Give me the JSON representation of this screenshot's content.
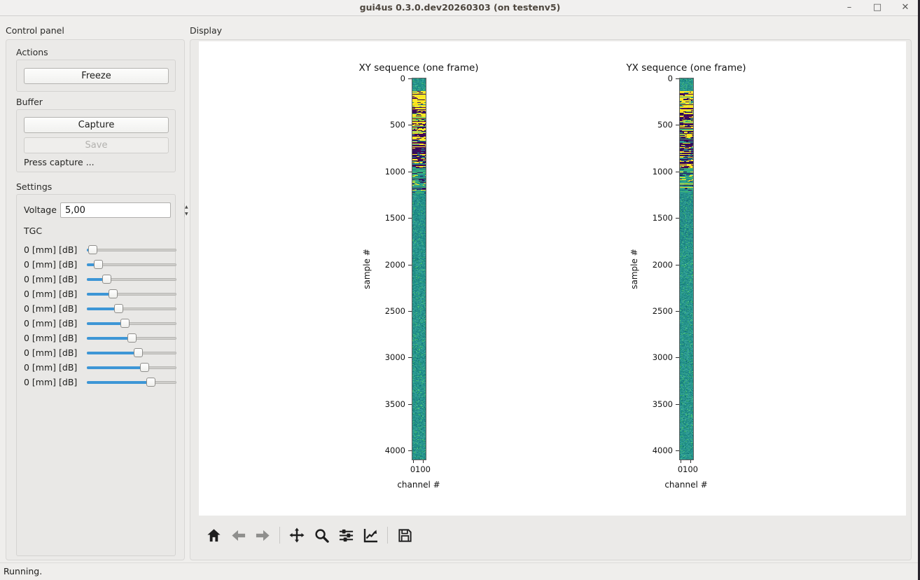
{
  "window": {
    "title": "gui4us 0.3.0.dev20260303 (on testenv5)",
    "controls": {
      "minimize": "–",
      "maximize": "□",
      "close": "✕"
    }
  },
  "status": "Running.",
  "control_panel": {
    "label": "Control panel",
    "actions": {
      "label": "Actions",
      "freeze_label": "Freeze"
    },
    "buffer": {
      "label": "Buffer",
      "capture_label": "Capture",
      "save_label": "Save",
      "hint": "Press capture ..."
    },
    "settings": {
      "label": "Settings",
      "voltage_label": "Voltage",
      "voltage_value": "5,00",
      "tgc": {
        "label": "TGC",
        "rows": [
          {
            "label": "0 [mm] [dB]",
            "fraction": 0.02
          },
          {
            "label": "0 [mm] [dB]",
            "fraction": 0.09
          },
          {
            "label": "0 [mm] [dB]",
            "fraction": 0.19
          },
          {
            "label": "0 [mm] [dB]",
            "fraction": 0.27
          },
          {
            "label": "0 [mm] [dB]",
            "fraction": 0.34
          },
          {
            "label": "0 [mm] [dB]",
            "fraction": 0.42
          },
          {
            "label": "0 [mm] [dB]",
            "fraction": 0.5
          },
          {
            "label": "0 [mm] [dB]",
            "fraction": 0.58
          },
          {
            "label": "0 [mm] [dB]",
            "fraction": 0.66
          },
          {
            "label": "0 [mm] [dB]",
            "fraction": 0.74
          }
        ]
      }
    }
  },
  "display": {
    "label": "Display",
    "toolbar_icons": [
      "home-icon",
      "back-icon",
      "forward-icon",
      "pan-icon",
      "zoom-icon",
      "subplots-icon",
      "customize-icon",
      "save-icon"
    ]
  },
  "chart_data": [
    {
      "type": "heatmap",
      "title": "XY sequence (one frame)",
      "xlabel": "channel #",
      "ylabel": "sample #",
      "xticks": [
        "0",
        "100"
      ],
      "yticks": [
        "0",
        "500",
        "1000",
        "1500",
        "2000",
        "2500",
        "3000",
        "3500",
        "4000"
      ],
      "ylim": [
        4100,
        0
      ],
      "colormap": "viridis",
      "legend": "none",
      "texture": {
        "seed": 1337,
        "colors": {
          "teal": "#27948c",
          "green": "#40b875",
          "yellow": "#fde725",
          "purple": "#45065a",
          "dark": "#2a115e",
          "deep": "#1d7f83"
        },
        "zones": [
          {
            "until": 0.032,
            "mode": "speckle",
            "palette": [
              [
                "teal",
                0.86
              ],
              [
                "green",
                0.1
              ],
              [
                "deep",
                0.04
              ]
            ]
          },
          {
            "until": 0.072,
            "mode": "bands",
            "palette": [
              [
                "yellow",
                0.7
              ],
              [
                "dark",
                0.12
              ],
              [
                "purple",
                0.1
              ],
              [
                "teal",
                0.08
              ]
            ]
          },
          {
            "until": 0.16,
            "mode": "bands",
            "palette": [
              [
                "yellow",
                0.38
              ],
              [
                "purple",
                0.32
              ],
              [
                "dark",
                0.2
              ],
              [
                "green",
                0.1
              ]
            ]
          },
          {
            "until": 0.235,
            "mode": "bands",
            "palette": [
              [
                "purple",
                0.38
              ],
              [
                "yellow",
                0.22
              ],
              [
                "dark",
                0.2
              ],
              [
                "teal",
                0.2
              ]
            ]
          },
          {
            "until": 0.3,
            "mode": "bands",
            "palette": [
              [
                "teal",
                0.4
              ],
              [
                "green",
                0.3
              ],
              [
                "dark",
                0.18
              ],
              [
                "yellow",
                0.12
              ]
            ]
          },
          {
            "until": 0.43,
            "mode": "diagonal",
            "palette": [
              [
                "teal",
                0.74
              ],
              [
                "deep",
                0.18
              ],
              [
                "green",
                0.08
              ]
            ]
          },
          {
            "until": 1.0,
            "mode": "speckle",
            "palette": [
              [
                "teal",
                0.86
              ],
              [
                "green",
                0.09
              ],
              [
                "deep",
                0.05
              ]
            ]
          }
        ]
      }
    },
    {
      "type": "heatmap",
      "title": "YX sequence (one frame)",
      "xlabel": "channel #",
      "ylabel": "sample #",
      "xticks": [
        "0",
        "100"
      ],
      "yticks": [
        "0",
        "500",
        "1000",
        "1500",
        "2000",
        "2500",
        "3000",
        "3500",
        "4000"
      ],
      "ylim": [
        4100,
        0
      ],
      "colormap": "viridis",
      "legend": "none",
      "texture": {
        "seed": 4242,
        "colors": {
          "teal": "#27948c",
          "green": "#40b875",
          "yellow": "#fde725",
          "purple": "#45065a",
          "dark": "#2a115e",
          "deep": "#1d7f83"
        },
        "zones": [
          {
            "until": 0.032,
            "mode": "speckle",
            "palette": [
              [
                "teal",
                0.86
              ],
              [
                "green",
                0.1
              ],
              [
                "deep",
                0.04
              ]
            ]
          },
          {
            "until": 0.072,
            "mode": "bands",
            "palette": [
              [
                "yellow",
                0.7
              ],
              [
                "dark",
                0.12
              ],
              [
                "purple",
                0.1
              ],
              [
                "teal",
                0.08
              ]
            ]
          },
          {
            "until": 0.16,
            "mode": "bands",
            "palette": [
              [
                "yellow",
                0.38
              ],
              [
                "purple",
                0.32
              ],
              [
                "dark",
                0.2
              ],
              [
                "green",
                0.1
              ]
            ]
          },
          {
            "until": 0.235,
            "mode": "bands",
            "palette": [
              [
                "purple",
                0.38
              ],
              [
                "yellow",
                0.22
              ],
              [
                "dark",
                0.2
              ],
              [
                "teal",
                0.2
              ]
            ]
          },
          {
            "until": 0.3,
            "mode": "bands",
            "palette": [
              [
                "teal",
                0.4
              ],
              [
                "green",
                0.3
              ],
              [
                "dark",
                0.18
              ],
              [
                "yellow",
                0.12
              ]
            ]
          },
          {
            "until": 0.43,
            "mode": "diagonal",
            "palette": [
              [
                "teal",
                0.74
              ],
              [
                "deep",
                0.18
              ],
              [
                "green",
                0.08
              ]
            ]
          },
          {
            "until": 1.0,
            "mode": "speckle",
            "palette": [
              [
                "teal",
                0.86
              ],
              [
                "green",
                0.09
              ],
              [
                "deep",
                0.05
              ]
            ]
          }
        ]
      }
    }
  ]
}
